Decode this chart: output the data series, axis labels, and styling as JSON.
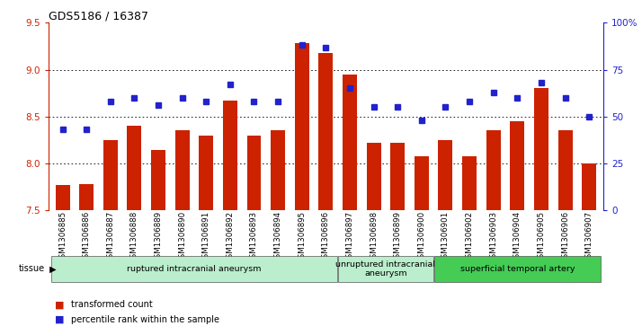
{
  "title": "GDS5186 / 16387",
  "samples": [
    "GSM1306885",
    "GSM1306886",
    "GSM1306887",
    "GSM1306888",
    "GSM1306889",
    "GSM1306890",
    "GSM1306891",
    "GSM1306892",
    "GSM1306893",
    "GSM1306894",
    "GSM1306895",
    "GSM1306896",
    "GSM1306897",
    "GSM1306898",
    "GSM1306899",
    "GSM1306900",
    "GSM1306901",
    "GSM1306902",
    "GSM1306903",
    "GSM1306904",
    "GSM1306905",
    "GSM1306906",
    "GSM1306907"
  ],
  "transformed_count": [
    7.77,
    7.78,
    8.25,
    8.4,
    8.14,
    8.35,
    8.3,
    8.67,
    8.3,
    8.35,
    9.28,
    9.18,
    8.95,
    8.22,
    8.22,
    8.08,
    8.25,
    8.08,
    8.35,
    8.45,
    8.8,
    8.35,
    8.0
  ],
  "percentile_rank": [
    43,
    43,
    58,
    60,
    56,
    60,
    58,
    67,
    58,
    58,
    88,
    87,
    65,
    55,
    55,
    48,
    55,
    58,
    63,
    60,
    68,
    60,
    50
  ],
  "bar_color": "#cc2200",
  "dot_color": "#2222cc",
  "ylim_left": [
    7.5,
    9.5
  ],
  "ylim_right": [
    0,
    100
  ],
  "yticks_left": [
    7.5,
    8.0,
    8.5,
    9.0,
    9.5
  ],
  "yticks_right": [
    0,
    25,
    50,
    75,
    100
  ],
  "ytick_labels_right": [
    "0",
    "25",
    "50",
    "75",
    "100%"
  ],
  "grid_values": [
    8.0,
    8.5,
    9.0
  ],
  "groups": [
    {
      "label": "ruptured intracranial aneurysm",
      "start": 0,
      "end": 11,
      "color": "#bbeecc"
    },
    {
      "label": "unruptured intracranial\naneurysm",
      "start": 12,
      "end": 15,
      "color": "#bbeecc"
    },
    {
      "label": "superficial temporal artery",
      "start": 16,
      "end": 22,
      "color": "#44cc55"
    }
  ],
  "tissue_label": "tissue",
  "legend_bar_label": "transformed count",
  "legend_dot_label": "percentile rank within the sample",
  "bg_color": "#ffffff",
  "tick_area_color": "#d8d8d8"
}
